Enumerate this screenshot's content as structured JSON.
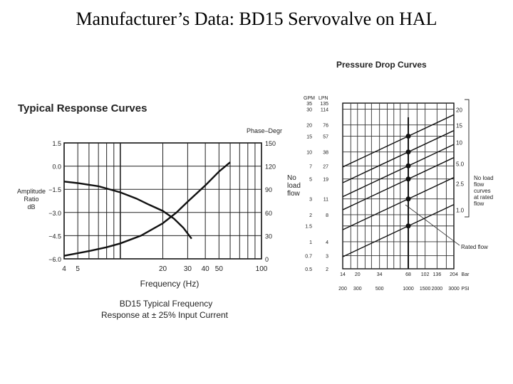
{
  "slide_title": "Manufacturer’s Data: BD15 Servovalve on HAL",
  "chart_data": [
    {
      "type": "line",
      "title": "Typical Response Curves",
      "xlabel": "Frequency (Hz)",
      "x_scale": "log",
      "xlim": [
        4,
        100
      ],
      "x_ticks": [
        "4",
        "5",
        "20",
        "30",
        "40",
        "50",
        "100"
      ],
      "ylabel_left": [
        "Amplitude",
        "Ratio",
        "dB"
      ],
      "y_ticks_left": [
        "1.5",
        "0.0",
        "−1.5",
        "−3.0",
        "−4.5",
        "−6.0"
      ],
      "ylim_left": [
        -6.0,
        1.5
      ],
      "ylabel_right": "Phase–Degr",
      "y_ticks_right": [
        "150",
        "120",
        "90",
        "60",
        "30",
        "0"
      ],
      "ylim_right": [
        0,
        150
      ],
      "caption": [
        "BD15 Typical Frequency",
        "Response at ± 25% Input Current"
      ],
      "series": [
        {
          "axis": "amplitude_dB",
          "x": [
            4,
            5,
            7,
            10,
            13,
            16,
            20,
            24,
            28,
            32
          ],
          "y": [
            -1.0,
            -1.1,
            -1.3,
            -1.7,
            -2.1,
            -2.5,
            -2.9,
            -3.4,
            -4.0,
            -4.7
          ]
        },
        {
          "axis": "phase_deg",
          "x": [
            4,
            6,
            8,
            10,
            14,
            20,
            25,
            30,
            40,
            50,
            60
          ],
          "y": [
            4,
            10,
            15,
            20,
            30,
            46,
            60,
            74,
            95,
            113,
            125
          ]
        }
      ],
      "grid": true
    },
    {
      "type": "line",
      "title": "Pressure Drop Curves",
      "x_scale": "log",
      "y_scale": "log",
      "x_ticks_bar": [
        "14",
        "20",
        "34",
        "68",
        "102",
        "136",
        "204",
        "Bar"
      ],
      "x_ticks_psi": [
        "200",
        "300",
        "500",
        "1000",
        "1500",
        "2000",
        "3000",
        "PSI"
      ],
      "y_ticks_gpm": [
        "GPM",
        "35",
        "30",
        "20",
        "15",
        "10",
        "7",
        "5",
        "3",
        "2",
        "1.5",
        "1",
        "0.7",
        "0.5"
      ],
      "y_ticks_lpn": [
        "LPN",
        "135",
        "114",
        "76",
        "57",
        "38",
        "27",
        "19",
        "11",
        "8",
        "4",
        "3",
        "2"
      ],
      "ylabel_left": [
        "No",
        "load",
        "flow"
      ],
      "rated_flows": [
        "20",
        "15",
        "10",
        "5.0",
        "2.5",
        "1.0"
      ],
      "rated_note": [
        "No load",
        "flow",
        "curves",
        "at rated",
        "flow"
      ],
      "annotation": "Rated flow",
      "series_rated_flow_at_68bar": [
        15,
        10,
        7,
        5,
        3,
        1.5
      ],
      "grid": true
    }
  ]
}
